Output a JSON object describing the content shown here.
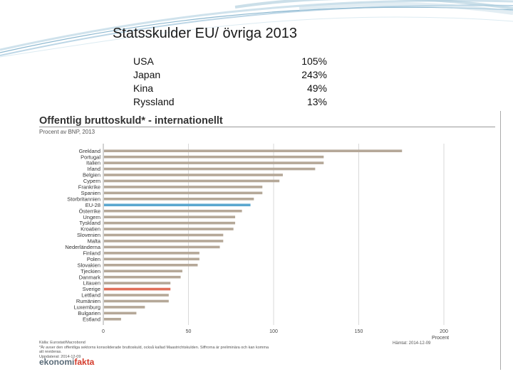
{
  "slide": {
    "title": "Statsskulder EU/ övriga 2013",
    "stats": [
      {
        "country": "USA",
        "value": "105%"
      },
      {
        "country": "Japan",
        "value": "243%"
      },
      {
        "country": "Kina",
        "value": "49%"
      },
      {
        "country": "Ryssland",
        "value": "13%"
      }
    ]
  },
  "chart": {
    "title": "Offentlig bruttoskuld* - internationellt",
    "subtitle": "Procent av BNP, 2013",
    "footer_lines": [
      "Källa: Eurostat/Macrobond",
      "*Är avser den offentliga sektorns konsoliderade bruttoskuld, också kallad Maastrichtskulden. Siffrorna är preliminära och kan komma",
      "att revideras.",
      "Uppdaterat: 2014-12-09"
    ],
    "updated": "Hämtat: 2014-12-09",
    "brand_a": "ekonomi",
    "brand_b": "fakta"
  },
  "colors": {
    "bar": "#b5a898",
    "eu": "#5aa7cf",
    "sweden": "#e0705a",
    "grid": "#d0d0d0"
  },
  "chart_data": {
    "type": "bar",
    "orientation": "horizontal",
    "title": "Offentlig bruttoskuld* - internationellt",
    "subtitle": "Procent av BNP, 2013",
    "xlabel": "Procent",
    "xlim": [
      0,
      200
    ],
    "xticks": [
      0,
      50,
      100,
      150,
      200
    ],
    "grid": true,
    "categories": [
      "Grekland",
      "Portugal",
      "Italien",
      "Irland",
      "Belgien",
      "Cypern",
      "Frankrike",
      "Spanien",
      "Storbritannien",
      "EU-28",
      "Österrike",
      "Ungern",
      "Tyskland",
      "Kroatien",
      "Slovenien",
      "Malta",
      "Nederländerna",
      "Finland",
      "Polen",
      "Slovakien",
      "Tjeckien",
      "Danmark",
      "Litauen",
      "Sverige",
      "Lettland",
      "Rumänien",
      "Luxemburg",
      "Bulgarien",
      "Estland"
    ],
    "values": [
      175,
      129,
      129,
      124,
      105,
      103,
      93,
      93,
      88,
      86,
      81,
      77,
      77,
      76,
      70,
      70,
      68,
      56,
      56,
      55,
      46,
      45,
      39,
      39,
      38,
      38,
      24,
      19,
      10
    ],
    "highlight": {
      "EU-28": "eu",
      "Sverige": "sweden"
    }
  }
}
